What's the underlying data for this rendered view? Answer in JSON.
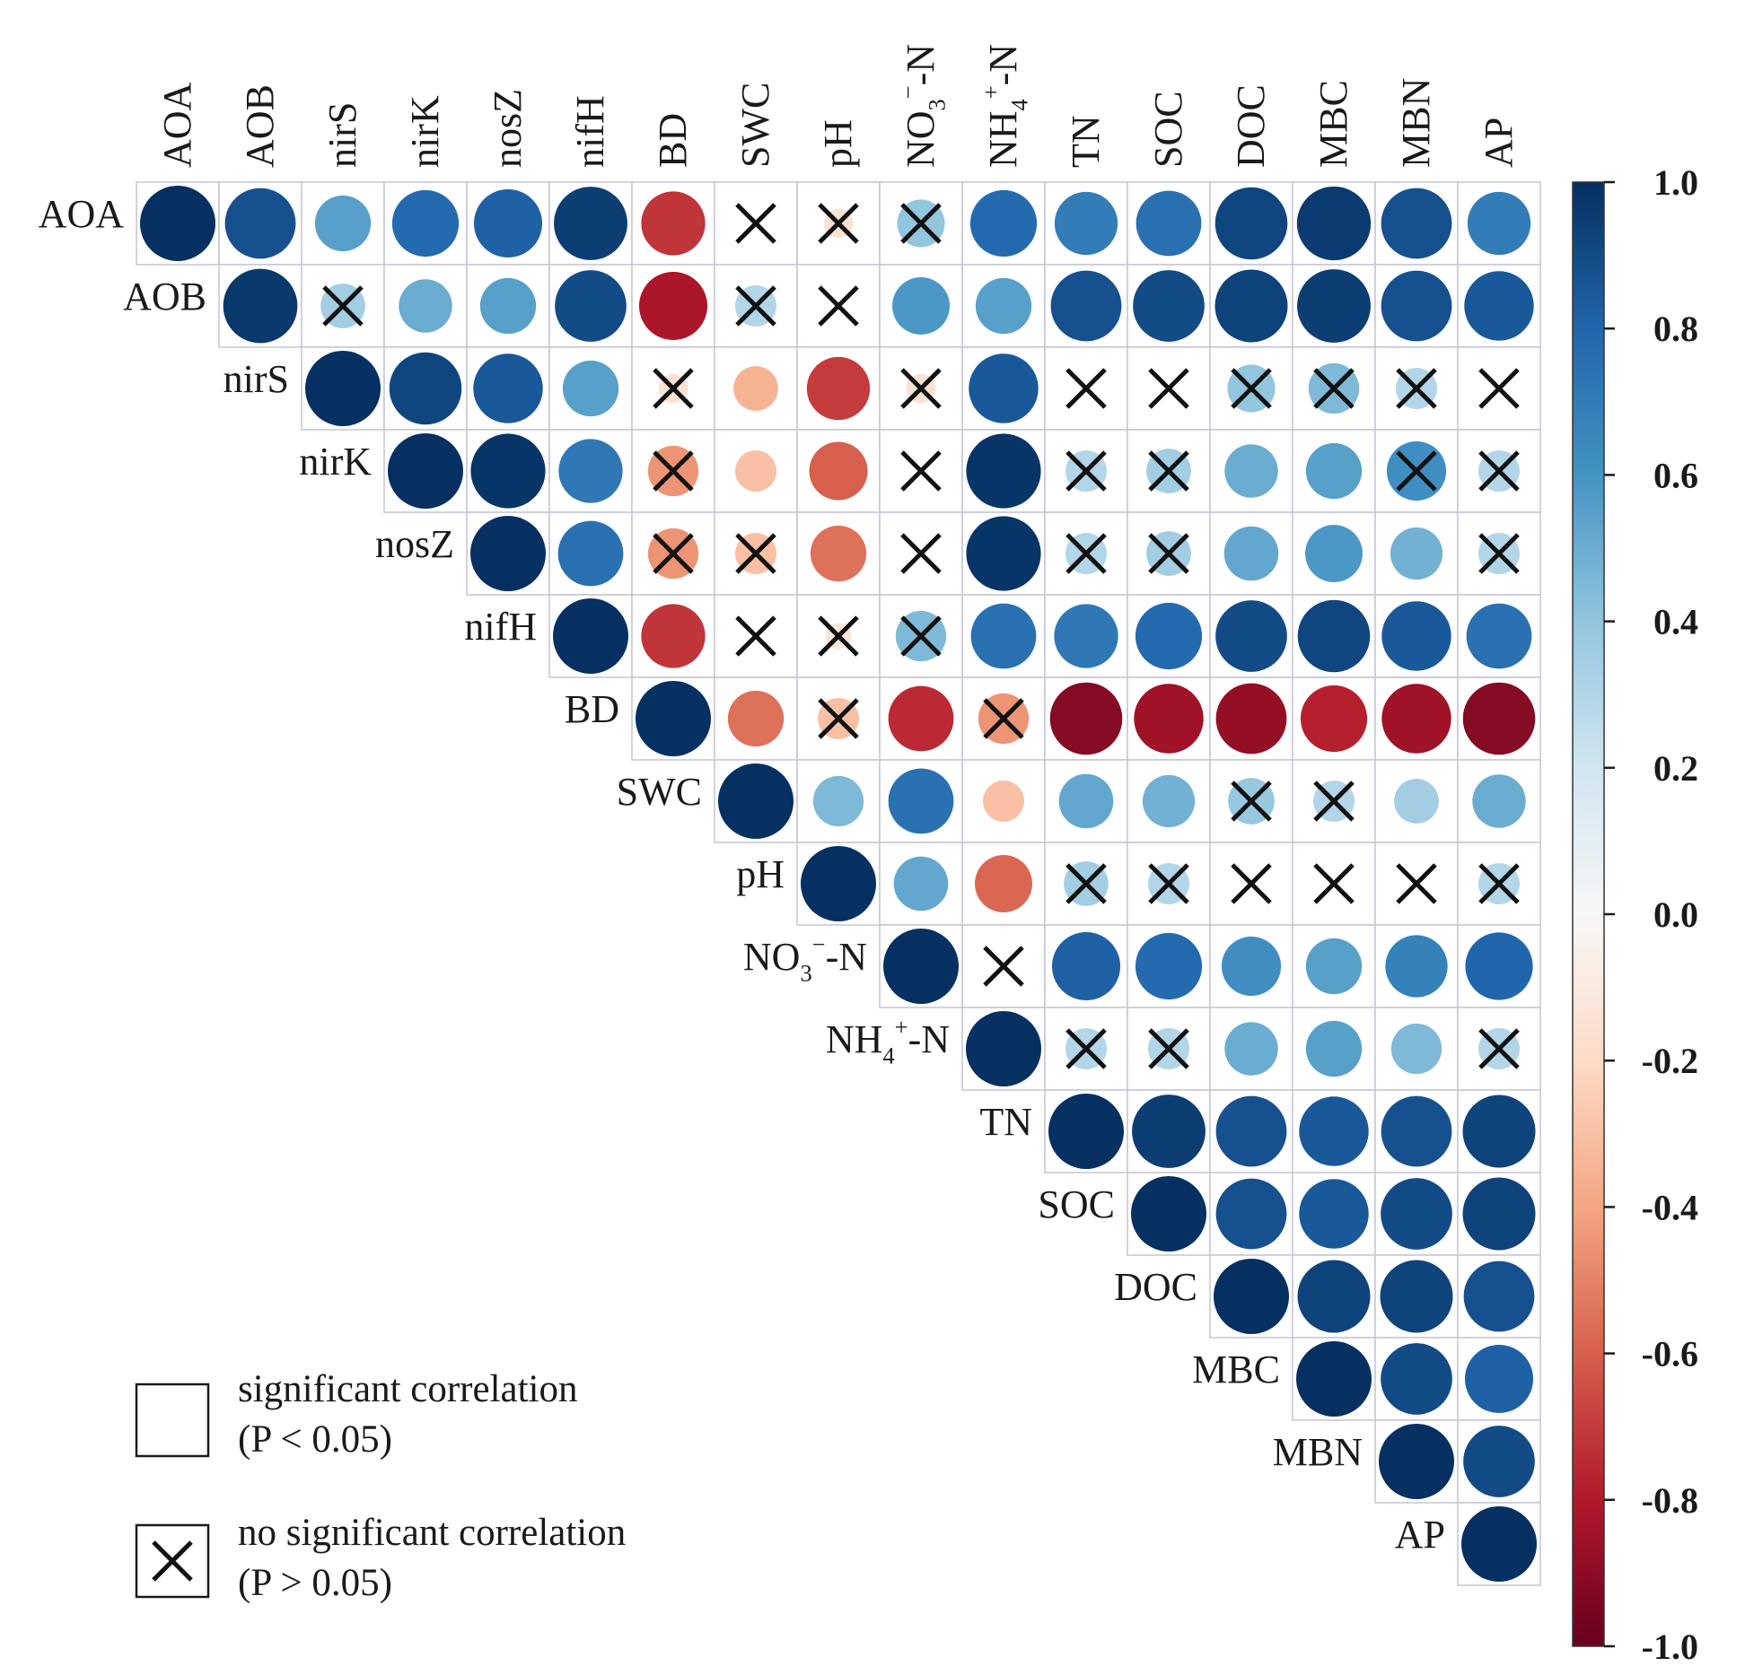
{
  "chart_data": {
    "type": "heatmap",
    "style": "correlation-circle-upper-triangle",
    "variables": [
      {
        "id": "AOA",
        "label": "AOA"
      },
      {
        "id": "AOB",
        "label": "AOB"
      },
      {
        "id": "nirS",
        "label": "nirS"
      },
      {
        "id": "nirK",
        "label": "nirK"
      },
      {
        "id": "nosZ",
        "label": "nosZ"
      },
      {
        "id": "nifH",
        "label": "nifH"
      },
      {
        "id": "BD",
        "label": "BD"
      },
      {
        "id": "SWC",
        "label": "SWC"
      },
      {
        "id": "pH",
        "label": "pH"
      },
      {
        "id": "NO3-N",
        "label": "NO3−-N",
        "base": "NO",
        "sub": "3",
        "sup": "−",
        "tail": "-N"
      },
      {
        "id": "NH4-N",
        "label": "NH4+-N",
        "base": "NH",
        "sub": "4",
        "sup": "+",
        "tail": "-N"
      },
      {
        "id": "TN",
        "label": "TN"
      },
      {
        "id": "SOC",
        "label": "SOC"
      },
      {
        "id": "DOC",
        "label": "DOC"
      },
      {
        "id": "MBC",
        "label": "MBC"
      },
      {
        "id": "MBN",
        "label": "MBN"
      },
      {
        "id": "AP",
        "label": "AP"
      }
    ],
    "matrix_upper": [
      [
        1.0,
        0.88,
        0.55,
        0.78,
        0.82,
        0.95,
        -0.72,
        0.0,
        -0.15,
        0.4,
        0.78,
        0.7,
        0.75,
        0.92,
        0.96,
        0.88,
        0.7
      ],
      [
        0.97,
        0.35,
        0.5,
        0.55,
        0.9,
        -0.82,
        0.3,
        0.0,
        0.58,
        0.55,
        0.88,
        0.9,
        0.93,
        0.95,
        0.88,
        0.85
      ],
      [
        1.0,
        0.92,
        0.85,
        0.55,
        -0.15,
        -0.35,
        -0.7,
        -0.15,
        0.85,
        0.0,
        0.0,
        0.4,
        0.45,
        0.3,
        0.0
      ],
      [
        1.0,
        0.98,
        0.72,
        -0.45,
        -0.3,
        -0.6,
        0.0,
        0.98,
        0.3,
        0.35,
        0.5,
        0.55,
        0.62,
        0.3
      ],
      [
        1.0,
        0.75,
        -0.45,
        -0.3,
        -0.55,
        0.0,
        0.98,
        0.3,
        0.35,
        0.52,
        0.58,
        0.48,
        0.3
      ],
      [
        1.0,
        -0.72,
        0.0,
        -0.12,
        0.45,
        0.75,
        0.72,
        0.78,
        0.9,
        0.92,
        0.85,
        0.75
      ],
      [
        1.0,
        -0.55,
        -0.3,
        -0.75,
        -0.45,
        -0.92,
        -0.85,
        -0.88,
        -0.78,
        -0.85,
        -0.92
      ],
      [
        1.0,
        0.45,
        0.75,
        -0.3,
        0.52,
        0.48,
        0.38,
        0.3,
        0.35,
        0.5
      ],
      [
        1.0,
        0.52,
        -0.58,
        0.35,
        0.3,
        0.0,
        0.0,
        0.0,
        0.3
      ],
      [
        1.0,
        0.0,
        0.82,
        0.78,
        0.62,
        0.55,
        0.68,
        0.8
      ],
      [
        1.0,
        0.3,
        0.3,
        0.5,
        0.55,
        0.45,
        0.3
      ],
      [
        1.0,
        0.95,
        0.88,
        0.85,
        0.88,
        0.93
      ],
      [
        1.0,
        0.88,
        0.85,
        0.9,
        0.93
      ],
      [
        1.0,
        0.93,
        0.93,
        0.88
      ],
      [
        1.0,
        0.9,
        0.82
      ],
      [
        1.0,
        0.9
      ],
      [
        1.0
      ]
    ],
    "not_significant_upper": [
      [
        false,
        false,
        false,
        false,
        false,
        false,
        false,
        true,
        true,
        true,
        false,
        false,
        false,
        false,
        false,
        false,
        false
      ],
      [
        false,
        true,
        false,
        false,
        false,
        false,
        true,
        true,
        false,
        false,
        false,
        false,
        false,
        false,
        false,
        false
      ],
      [
        false,
        false,
        false,
        false,
        true,
        false,
        false,
        true,
        false,
        true,
        true,
        true,
        true,
        true,
        true
      ],
      [
        false,
        false,
        false,
        true,
        false,
        false,
        true,
        false,
        true,
        true,
        false,
        false,
        true,
        true
      ],
      [
        false,
        false,
        true,
        true,
        false,
        true,
        false,
        true,
        true,
        false,
        false,
        false,
        true
      ],
      [
        false,
        false,
        true,
        true,
        true,
        false,
        false,
        false,
        false,
        false,
        false,
        false
      ],
      [
        false,
        false,
        true,
        false,
        true,
        false,
        false,
        false,
        false,
        false,
        false
      ],
      [
        false,
        false,
        false,
        false,
        false,
        false,
        true,
        true,
        false,
        false
      ],
      [
        false,
        false,
        false,
        true,
        true,
        true,
        true,
        true,
        true
      ],
      [
        false,
        true,
        false,
        false,
        false,
        false,
        false,
        false
      ],
      [
        false,
        true,
        true,
        false,
        false,
        false,
        true
      ],
      [
        false,
        false,
        false,
        false,
        false,
        false
      ],
      [
        false,
        false,
        false,
        false,
        false
      ],
      [
        false,
        false,
        false,
        false
      ],
      [
        false,
        false,
        false
      ],
      [
        false,
        false
      ],
      [
        false
      ]
    ],
    "colorbar": {
      "range": [
        -1.0,
        1.0
      ],
      "ticks": [
        "1.0",
        "0.8",
        "0.6",
        "0.4",
        "0.2",
        "0.0",
        "-0.2",
        "-0.4",
        "-0.6",
        "-0.8",
        "-1.0"
      ],
      "colormap": "RdBu",
      "stops": [
        "#67001f",
        "#b2182b",
        "#d6604d",
        "#f4a582",
        "#fddbc7",
        "#f7f7f7",
        "#d1e5f0",
        "#92c5de",
        "#4393c3",
        "#2166ac",
        "#053061"
      ]
    },
    "legend": {
      "significant_label": "significant correlation",
      "significant_p": "(P < 0.05)",
      "not_significant_label": "no significant correlation",
      "not_significant_p": "(P > 0.05)"
    }
  },
  "colors": {
    "grid": "#c8c8d6",
    "text": "#1a1a1a",
    "cross": "#111111"
  }
}
